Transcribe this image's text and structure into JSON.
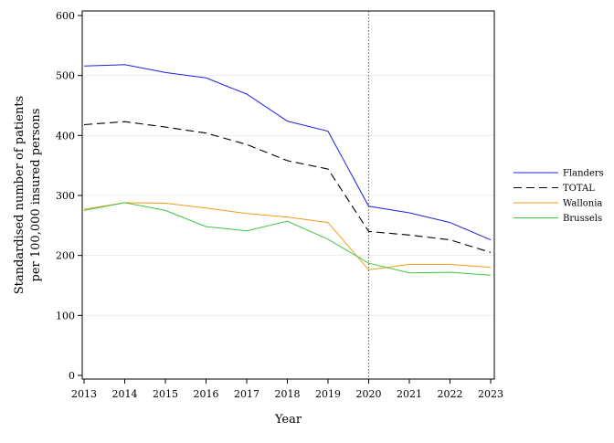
{
  "chart_data": {
    "type": "line",
    "title": "",
    "xlabel": "Year",
    "ylabel_lines": [
      "Standardised number of patients",
      "per 100,000 insured persons"
    ],
    "x": [
      2013,
      2014,
      2015,
      2016,
      2017,
      2018,
      2019,
      2020,
      2021,
      2022,
      2023
    ],
    "xlim": [
      2013,
      2023
    ],
    "ylim": [
      0,
      600
    ],
    "yticks": [
      0,
      100,
      200,
      300,
      400,
      500,
      600
    ],
    "grid": "horizontal",
    "legend_position": "right",
    "reference_line": {
      "x": 2020,
      "style": "dotted",
      "color": "#a0526d"
    },
    "series": [
      {
        "name": "Flanders",
        "color": "#2020e0",
        "dash": "solid",
        "values": [
          516,
          518,
          505,
          496,
          469,
          424,
          407,
          282,
          271,
          255,
          226
        ]
      },
      {
        "name": "TOTAL",
        "color": "#000000",
        "dash": "dashed",
        "values": [
          418,
          423,
          414,
          404,
          385,
          358,
          344,
          240,
          234,
          226,
          205
        ]
      },
      {
        "name": "Wallonia",
        "color": "#f59a1a",
        "dash": "solid",
        "values": [
          277,
          288,
          287,
          279,
          270,
          264,
          255,
          176,
          185,
          185,
          180
        ]
      },
      {
        "name": "Brussels",
        "color": "#40c840",
        "dash": "solid",
        "values": [
          275,
          288,
          275,
          248,
          241,
          257,
          227,
          187,
          171,
          172,
          167
        ]
      }
    ]
  }
}
